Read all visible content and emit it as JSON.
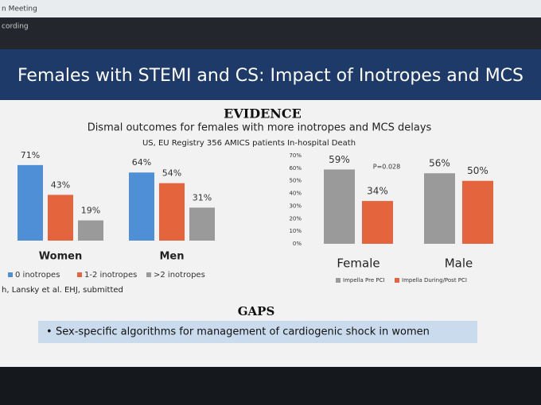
{
  "window": {
    "title": "n Meeting",
    "status": "cording"
  },
  "slide": {
    "title": "Females with STEMI and CS: Impact of Inotropes and MCS",
    "evidence_heading": "EVIDENCE",
    "subtitle": "Dismal outcomes for females with more inotropes and MCS delays",
    "registry": "US, EU Registry 356 AMICS patients In-hospital Death",
    "citation": "h, Lansky et al. EHJ, submitted",
    "gaps_heading": "GAPS",
    "gaps_item": "Sex-specific algorithms for management of cardiogenic shock in women"
  },
  "chart_data": [
    {
      "type": "bar",
      "categories": [
        "Women",
        "Men"
      ],
      "series": [
        {
          "name": "0 inotropes",
          "color": "#4f8fd6",
          "values": [
            71,
            64
          ],
          "value_labels": [
            "71%",
            "64%"
          ]
        },
        {
          "name": "1-2 inotropes",
          "color": "#e4643d",
          "values": [
            43,
            54
          ],
          "value_labels": [
            "43%",
            "54%"
          ]
        },
        {
          "name": ">2 inotropes",
          "color": "#9a9a9a",
          "values": [
            19,
            31
          ],
          "value_labels": [
            "19%",
            "31%"
          ]
        }
      ]
    },
    {
      "type": "bar",
      "categories": [
        "Female",
        "Male"
      ],
      "series": [
        {
          "name": "Impella Pre PCI",
          "color": "#9a9a9a",
          "values": [
            59,
            56
          ],
          "value_labels": [
            "59%",
            "56%"
          ]
        },
        {
          "name": "Impella During/Post PCI",
          "color": "#e4643d",
          "values": [
            34,
            50
          ],
          "value_labels": [
            "34%",
            "50%"
          ]
        }
      ],
      "annotation": "P=0.028",
      "ylim": [
        0,
        70
      ],
      "yticks": [
        {
          "value": 0,
          "label": "0%"
        },
        {
          "value": 10,
          "label": "10%"
        },
        {
          "value": 20,
          "label": "20%"
        },
        {
          "value": 30,
          "label": "30%"
        },
        {
          "value": 40,
          "label": "40%"
        },
        {
          "value": 50,
          "label": "50%"
        },
        {
          "value": 60,
          "label": "60%"
        },
        {
          "value": 70,
          "label": "70%"
        }
      ],
      "grid": false
    }
  ]
}
